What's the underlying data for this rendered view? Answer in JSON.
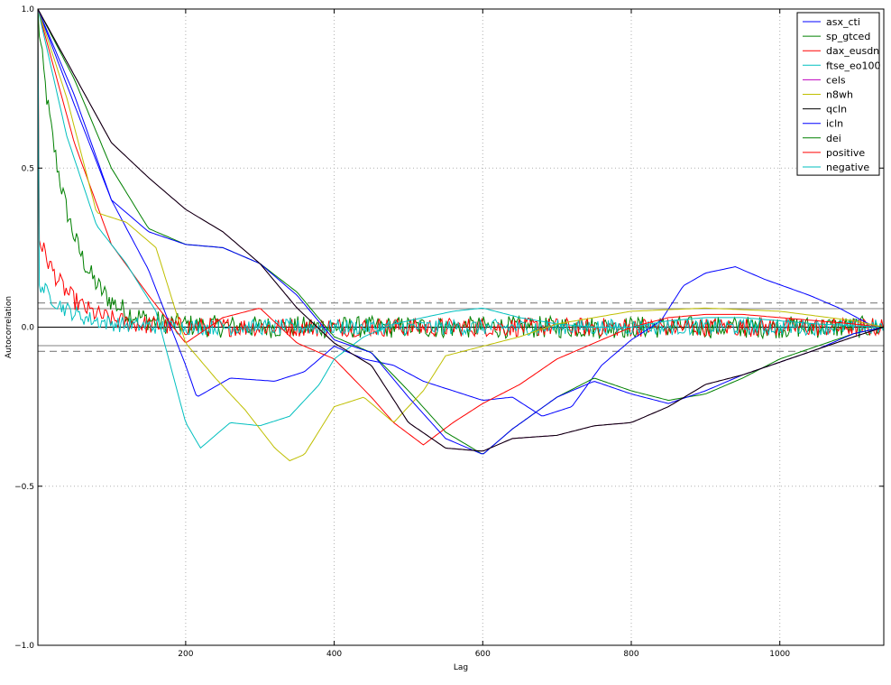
{
  "chart_data": {
    "type": "line",
    "title": "",
    "xlabel": "Lag",
    "ylabel": "Autocorrelation",
    "xlim": [
      1,
      1140
    ],
    "ylim": [
      -1.0,
      1.0
    ],
    "xticks": [
      200,
      400,
      600,
      800,
      1000
    ],
    "xtick_labels": [
      "200",
      "400",
      "600",
      "800",
      "1000"
    ],
    "yticks": [
      -1.0,
      -0.5,
      0.0,
      0.5,
      1.0
    ],
    "ytick_labels": [
      "−1.0",
      "−0.5",
      "0.0",
      "0.5",
      "1.0"
    ],
    "grid": true,
    "legend_position": "top-right",
    "confidence_bands": {
      "inner": [
        -0.058,
        0.058
      ],
      "outer": [
        -0.076,
        0.076
      ]
    },
    "series": [
      {
        "name": "asx_cti",
        "color": "#0000ff",
        "kind": "smooth",
        "points": [
          [
            1,
            1.0
          ],
          [
            50,
            0.7
          ],
          [
            100,
            0.4
          ],
          [
            150,
            0.18
          ],
          [
            200,
            -0.12
          ],
          [
            215,
            -0.22
          ],
          [
            260,
            -0.16
          ],
          [
            320,
            -0.17
          ],
          [
            360,
            -0.14
          ],
          [
            400,
            -0.06
          ],
          [
            440,
            -0.1
          ],
          [
            480,
            -0.12
          ],
          [
            520,
            -0.17
          ],
          [
            560,
            -0.2
          ],
          [
            600,
            -0.23
          ],
          [
            640,
            -0.22
          ],
          [
            680,
            -0.28
          ],
          [
            720,
            -0.25
          ],
          [
            760,
            -0.12
          ],
          [
            800,
            -0.04
          ],
          [
            840,
            0.02
          ],
          [
            870,
            0.13
          ],
          [
            900,
            0.17
          ],
          [
            940,
            0.19
          ],
          [
            980,
            0.15
          ],
          [
            1040,
            0.1
          ],
          [
            1080,
            0.06
          ],
          [
            1120,
            0.01
          ],
          [
            1140,
            0.0
          ]
        ]
      },
      {
        "name": "sp_gtced",
        "color": "#008000",
        "kind": "smooth",
        "points": [
          [
            1,
            1.0
          ],
          [
            50,
            0.78
          ],
          [
            100,
            0.5
          ],
          [
            150,
            0.31
          ],
          [
            200,
            0.26
          ],
          [
            250,
            0.25
          ],
          [
            300,
            0.2
          ],
          [
            350,
            0.11
          ],
          [
            400,
            -0.03
          ],
          [
            450,
            -0.08
          ],
          [
            500,
            -0.2
          ],
          [
            550,
            -0.33
          ],
          [
            600,
            -0.4
          ],
          [
            640,
            -0.32
          ],
          [
            700,
            -0.22
          ],
          [
            750,
            -0.16
          ],
          [
            800,
            -0.2
          ],
          [
            850,
            -0.23
          ],
          [
            900,
            -0.21
          ],
          [
            950,
            -0.16
          ],
          [
            1000,
            -0.1
          ],
          [
            1050,
            -0.06
          ],
          [
            1100,
            -0.02
          ],
          [
            1140,
            0.0
          ]
        ]
      },
      {
        "name": "dax_eusdn",
        "color": "#ff0000",
        "kind": "smooth",
        "points": [
          [
            1,
            1.0
          ],
          [
            50,
            0.58
          ],
          [
            100,
            0.26
          ],
          [
            150,
            0.1
          ],
          [
            200,
            -0.05
          ],
          [
            250,
            0.03
          ],
          [
            300,
            0.06
          ],
          [
            350,
            -0.05
          ],
          [
            400,
            -0.1
          ],
          [
            450,
            -0.22
          ],
          [
            480,
            -0.3
          ],
          [
            520,
            -0.37
          ],
          [
            560,
            -0.3
          ],
          [
            600,
            -0.24
          ],
          [
            650,
            -0.18
          ],
          [
            700,
            -0.1
          ],
          [
            750,
            -0.05
          ],
          [
            800,
            0.0
          ],
          [
            850,
            0.03
          ],
          [
            900,
            0.04
          ],
          [
            950,
            0.04
          ],
          [
            1000,
            0.03
          ],
          [
            1050,
            0.02
          ],
          [
            1100,
            0.01
          ],
          [
            1140,
            0.0
          ]
        ]
      },
      {
        "name": "ftse_eo100",
        "color": "#00bfbf",
        "kind": "smooth",
        "points": [
          [
            1,
            1.0
          ],
          [
            40,
            0.6
          ],
          [
            80,
            0.32
          ],
          [
            120,
            0.2
          ],
          [
            160,
            0.05
          ],
          [
            200,
            -0.3
          ],
          [
            220,
            -0.38
          ],
          [
            260,
            -0.3
          ],
          [
            300,
            -0.31
          ],
          [
            340,
            -0.28
          ],
          [
            380,
            -0.18
          ],
          [
            400,
            -0.1
          ],
          [
            440,
            -0.03
          ],
          [
            480,
            0.01
          ],
          [
            520,
            0.03
          ],
          [
            560,
            0.05
          ],
          [
            600,
            0.06
          ],
          [
            650,
            0.03
          ],
          [
            700,
            0.01
          ],
          [
            750,
            0.0
          ],
          [
            800,
            0.0
          ],
          [
            850,
            0.02
          ],
          [
            900,
            0.03
          ],
          [
            950,
            0.03
          ],
          [
            1000,
            0.02
          ],
          [
            1050,
            0.01
          ],
          [
            1140,
            0.0
          ]
        ]
      },
      {
        "name": "cels",
        "color": "#bf00bf",
        "kind": "smooth",
        "points": [
          [
            1,
            1.0
          ],
          [
            100,
            0.58
          ],
          [
            150,
            0.47
          ],
          [
            200,
            0.37
          ],
          [
            250,
            0.3
          ],
          [
            300,
            0.2
          ],
          [
            350,
            0.06
          ],
          [
            400,
            -0.05
          ],
          [
            450,
            -0.12
          ],
          [
            500,
            -0.3
          ],
          [
            550,
            -0.38
          ],
          [
            600,
            -0.39
          ],
          [
            640,
            -0.35
          ],
          [
            700,
            -0.34
          ],
          [
            750,
            -0.31
          ],
          [
            800,
            -0.3
          ],
          [
            850,
            -0.25
          ],
          [
            900,
            -0.18
          ],
          [
            950,
            -0.15
          ],
          [
            1000,
            -0.11
          ],
          [
            1050,
            -0.07
          ],
          [
            1100,
            -0.03
          ],
          [
            1140,
            0.0
          ]
        ]
      },
      {
        "name": "n8wh",
        "color": "#bfbf00",
        "kind": "smooth",
        "points": [
          [
            1,
            1.0
          ],
          [
            40,
            0.72
          ],
          [
            80,
            0.36
          ],
          [
            120,
            0.33
          ],
          [
            160,
            0.25
          ],
          [
            200,
            -0.05
          ],
          [
            240,
            -0.16
          ],
          [
            280,
            -0.26
          ],
          [
            320,
            -0.38
          ],
          [
            340,
            -0.42
          ],
          [
            360,
            -0.4
          ],
          [
            400,
            -0.25
          ],
          [
            440,
            -0.22
          ],
          [
            480,
            -0.3
          ],
          [
            520,
            -0.2
          ],
          [
            550,
            -0.09
          ],
          [
            600,
            -0.06
          ],
          [
            650,
            -0.03
          ],
          [
            700,
            0.01
          ],
          [
            750,
            0.03
          ],
          [
            800,
            0.05
          ],
          [
            900,
            0.06
          ],
          [
            1000,
            0.05
          ],
          [
            1100,
            0.02
          ],
          [
            1140,
            0.0
          ]
        ]
      },
      {
        "name": "qcln",
        "color": "#000000",
        "kind": "smooth",
        "points": [
          [
            1,
            1.0
          ],
          [
            100,
            0.58
          ],
          [
            150,
            0.47
          ],
          [
            200,
            0.37
          ],
          [
            250,
            0.3
          ],
          [
            300,
            0.2
          ],
          [
            350,
            0.06
          ],
          [
            400,
            -0.05
          ],
          [
            450,
            -0.12
          ],
          [
            500,
            -0.3
          ],
          [
            550,
            -0.38
          ],
          [
            600,
            -0.39
          ],
          [
            640,
            -0.35
          ],
          [
            700,
            -0.34
          ],
          [
            750,
            -0.31
          ],
          [
            800,
            -0.3
          ],
          [
            850,
            -0.25
          ],
          [
            900,
            -0.18
          ],
          [
            950,
            -0.15
          ],
          [
            1000,
            -0.11
          ],
          [
            1050,
            -0.07
          ],
          [
            1100,
            -0.03
          ],
          [
            1140,
            0.0
          ]
        ]
      },
      {
        "name": "icln",
        "color": "#0000ff",
        "kind": "smooth",
        "points": [
          [
            1,
            1.0
          ],
          [
            50,
            0.73
          ],
          [
            100,
            0.4
          ],
          [
            150,
            0.3
          ],
          [
            200,
            0.26
          ],
          [
            250,
            0.25
          ],
          [
            300,
            0.2
          ],
          [
            350,
            0.1
          ],
          [
            400,
            -0.04
          ],
          [
            450,
            -0.08
          ],
          [
            500,
            -0.22
          ],
          [
            550,
            -0.35
          ],
          [
            600,
            -0.4
          ],
          [
            640,
            -0.32
          ],
          [
            700,
            -0.22
          ],
          [
            750,
            -0.17
          ],
          [
            800,
            -0.21
          ],
          [
            850,
            -0.24
          ],
          [
            900,
            -0.2
          ],
          [
            950,
            -0.15
          ],
          [
            1000,
            -0.11
          ],
          [
            1050,
            -0.07
          ],
          [
            1100,
            -0.02
          ],
          [
            1140,
            0.0
          ]
        ]
      },
      {
        "name": "dei",
        "color": "#008000",
        "kind": "noise",
        "decay_end": 1.0,
        "noise_amp": 0.035
      },
      {
        "name": "positive",
        "color": "#ff0000",
        "kind": "noise",
        "decay_end": 0.3,
        "noise_amp": 0.03
      },
      {
        "name": "negative",
        "color": "#00bfbf",
        "kind": "noise",
        "decay_end": 0.15,
        "noise_amp": 0.025
      }
    ]
  }
}
